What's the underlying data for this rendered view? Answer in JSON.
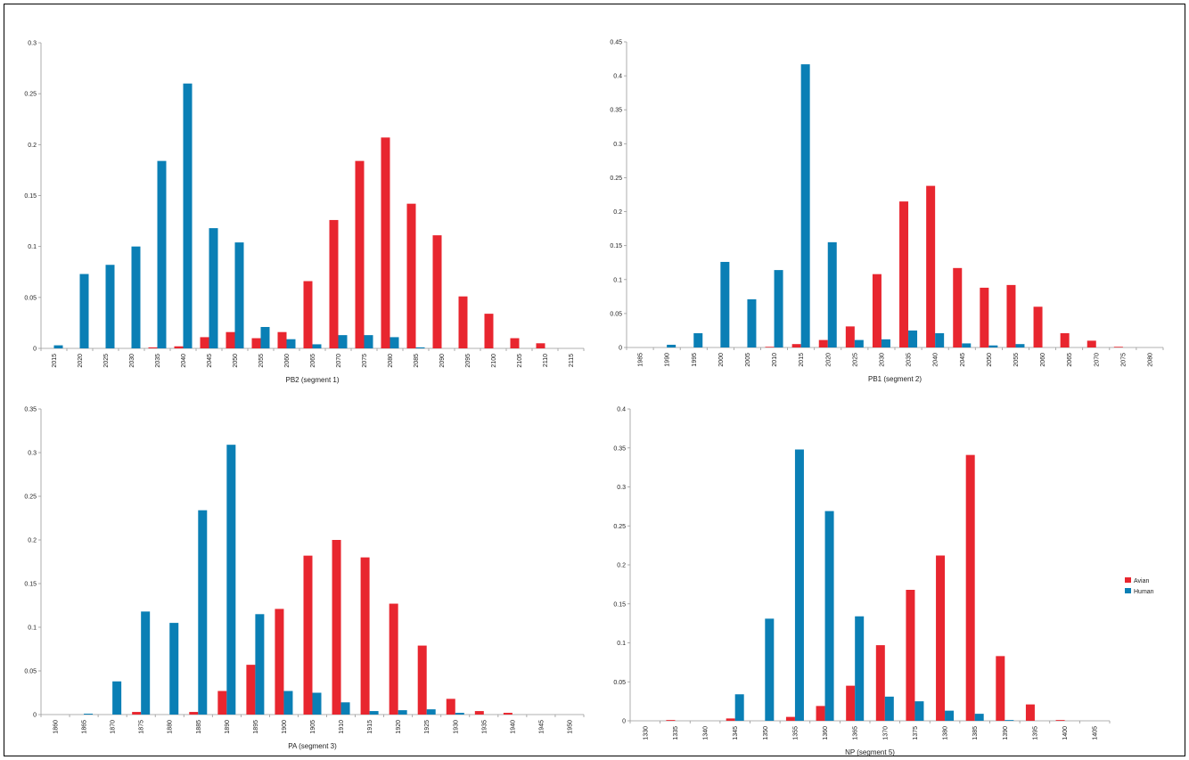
{
  "colors": {
    "avian": "#e8262f",
    "human": "#0a7fb5"
  },
  "legend": [
    {
      "name": "Avian",
      "color": "#e8262f"
    },
    {
      "name": "Human",
      "color": "#0a7fb5"
    }
  ],
  "chart_data": [
    {
      "type": "bar",
      "xlabel": "PB2 (segment 1)",
      "ylim": [
        0,
        0.3
      ],
      "yticks": [
        "0",
        "0.05",
        "0.1",
        "0.15",
        "0.2",
        "0.25",
        "0.3"
      ],
      "categories": [
        "2015",
        "2020",
        "2025",
        "2030",
        "2035",
        "2040",
        "2045",
        "2050",
        "2055",
        "2060",
        "2065",
        "2070",
        "2075",
        "2080",
        "2085",
        "2090",
        "2095",
        "2100",
        "2105",
        "2110",
        "2115"
      ],
      "series": [
        {
          "name": "Avian",
          "values": [
            0,
            0,
            0,
            0,
            0.001,
            0.002,
            0.011,
            0.016,
            0.01,
            0.016,
            0.066,
            0.126,
            0.184,
            0.207,
            0.142,
            0.111,
            0.051,
            0.034,
            0.01,
            0.005,
            0
          ]
        },
        {
          "name": "Human",
          "values": [
            0.003,
            0.073,
            0.082,
            0.1,
            0.184,
            0.26,
            0.118,
            0.104,
            0.021,
            0.009,
            0.004,
            0.013,
            0.013,
            0.011,
            0.001,
            0,
            0,
            0,
            0,
            0,
            0
          ]
        }
      ]
    },
    {
      "type": "bar",
      "xlabel": "PB1 (segment 2)",
      "ylim": [
        0,
        0.45
      ],
      "yticks": [
        "0",
        "0.05",
        "0.1",
        "0.15",
        "0.2",
        "0.25",
        "0.3",
        "0.35",
        "0.4",
        "0.45"
      ],
      "categories": [
        "1985",
        "1990",
        "1995",
        "2000",
        "2005",
        "2010",
        "2015",
        "2020",
        "2025",
        "2030",
        "2035",
        "2040",
        "2045",
        "2050",
        "2055",
        "2060",
        "2065",
        "2070",
        "2075",
        "2080"
      ],
      "series": [
        {
          "name": "Avian",
          "values": [
            0,
            0,
            0,
            0,
            0,
            0.001,
            0.005,
            0.011,
            0.031,
            0.108,
            0.215,
            0.238,
            0.117,
            0.088,
            0.092,
            0.06,
            0.021,
            0.01,
            0.001,
            0
          ]
        },
        {
          "name": "Human",
          "values": [
            0,
            0.004,
            0.021,
            0.126,
            0.071,
            0.114,
            0.417,
            0.155,
            0.011,
            0.012,
            0.025,
            0.021,
            0.006,
            0.003,
            0.005,
            0,
            0,
            0,
            0,
            0
          ]
        }
      ]
    },
    {
      "type": "bar",
      "xlabel": "PA (segment 3)",
      "ylim": [
        0,
        0.35
      ],
      "yticks": [
        "0",
        "0.05",
        "0.1",
        "0.15",
        "0.2",
        "0.25",
        "0.3",
        "0.35"
      ],
      "categories": [
        "1860",
        "1865",
        "1870",
        "1875",
        "1880",
        "1885",
        "1890",
        "1895",
        "1900",
        "1905",
        "1910",
        "1915",
        "1920",
        "1925",
        "1930",
        "1935",
        "1940",
        "1945",
        "1950"
      ],
      "series": [
        {
          "name": "Avian",
          "values": [
            0,
            0,
            0,
            0.003,
            0,
            0.003,
            0.027,
            0.057,
            0.121,
            0.182,
            0.2,
            0.18,
            0.127,
            0.079,
            0.018,
            0.004,
            0.002,
            0,
            0
          ]
        },
        {
          "name": "Human",
          "values": [
            0,
            0.001,
            0.038,
            0.118,
            0.105,
            0.234,
            0.309,
            0.115,
            0.027,
            0.025,
            0.014,
            0.004,
            0.005,
            0.006,
            0.002,
            0,
            0,
            0,
            0
          ]
        }
      ]
    },
    {
      "type": "bar",
      "xlabel": "NP (segment 5)",
      "ylim": [
        0,
        0.4
      ],
      "yticks": [
        "0",
        "0.05",
        "0.1",
        "0.15",
        "0.2",
        "0.25",
        "0.3",
        "0.35",
        "0.4"
      ],
      "categories": [
        "1330",
        "1335",
        "1340",
        "1345",
        "1350",
        "1355",
        "1360",
        "1365",
        "1370",
        "1375",
        "1380",
        "1385",
        "1390",
        "1395",
        "1400",
        "1405"
      ],
      "series": [
        {
          "name": "Avian",
          "values": [
            0,
            0.001,
            0,
            0.003,
            0,
            0.005,
            0.019,
            0.045,
            0.097,
            0.168,
            0.212,
            0.341,
            0.083,
            0.021,
            0.001,
            0
          ]
        },
        {
          "name": "Human",
          "values": [
            0,
            0,
            0,
            0.034,
            0.131,
            0.348,
            0.269,
            0.134,
            0.031,
            0.025,
            0.013,
            0.009,
            0.001,
            0,
            0,
            0
          ]
        }
      ]
    }
  ]
}
